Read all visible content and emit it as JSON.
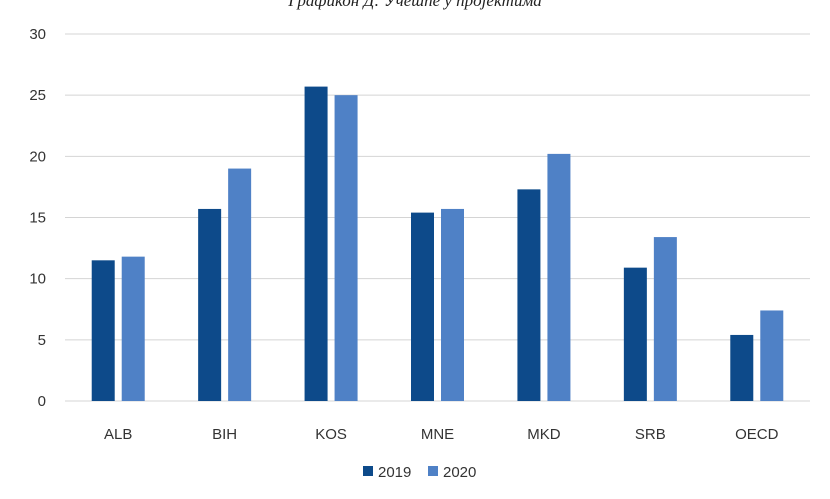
{
  "caption": "Графикон Д: Учешће у пројектима",
  "chart_data": {
    "type": "bar",
    "categories": [
      "ALB",
      "BIH",
      "KOS",
      "MNE",
      "MKD",
      "SRB",
      "OECD"
    ],
    "series": [
      {
        "name": "2019",
        "values": [
          11.5,
          15.7,
          25.7,
          15.4,
          17.3,
          10.9,
          5.4
        ],
        "color": "#0d4a8a"
      },
      {
        "name": "2020",
        "values": [
          11.8,
          19.0,
          25.0,
          15.7,
          20.2,
          13.4,
          7.4
        ],
        "color": "#4f81c6"
      }
    ],
    "yticks": [
      0,
      5,
      10,
      15,
      20,
      25,
      30
    ],
    "ylim": [
      0,
      30
    ],
    "grid": true,
    "legend": "bottom-center",
    "xlabel": "",
    "ylabel": ""
  }
}
